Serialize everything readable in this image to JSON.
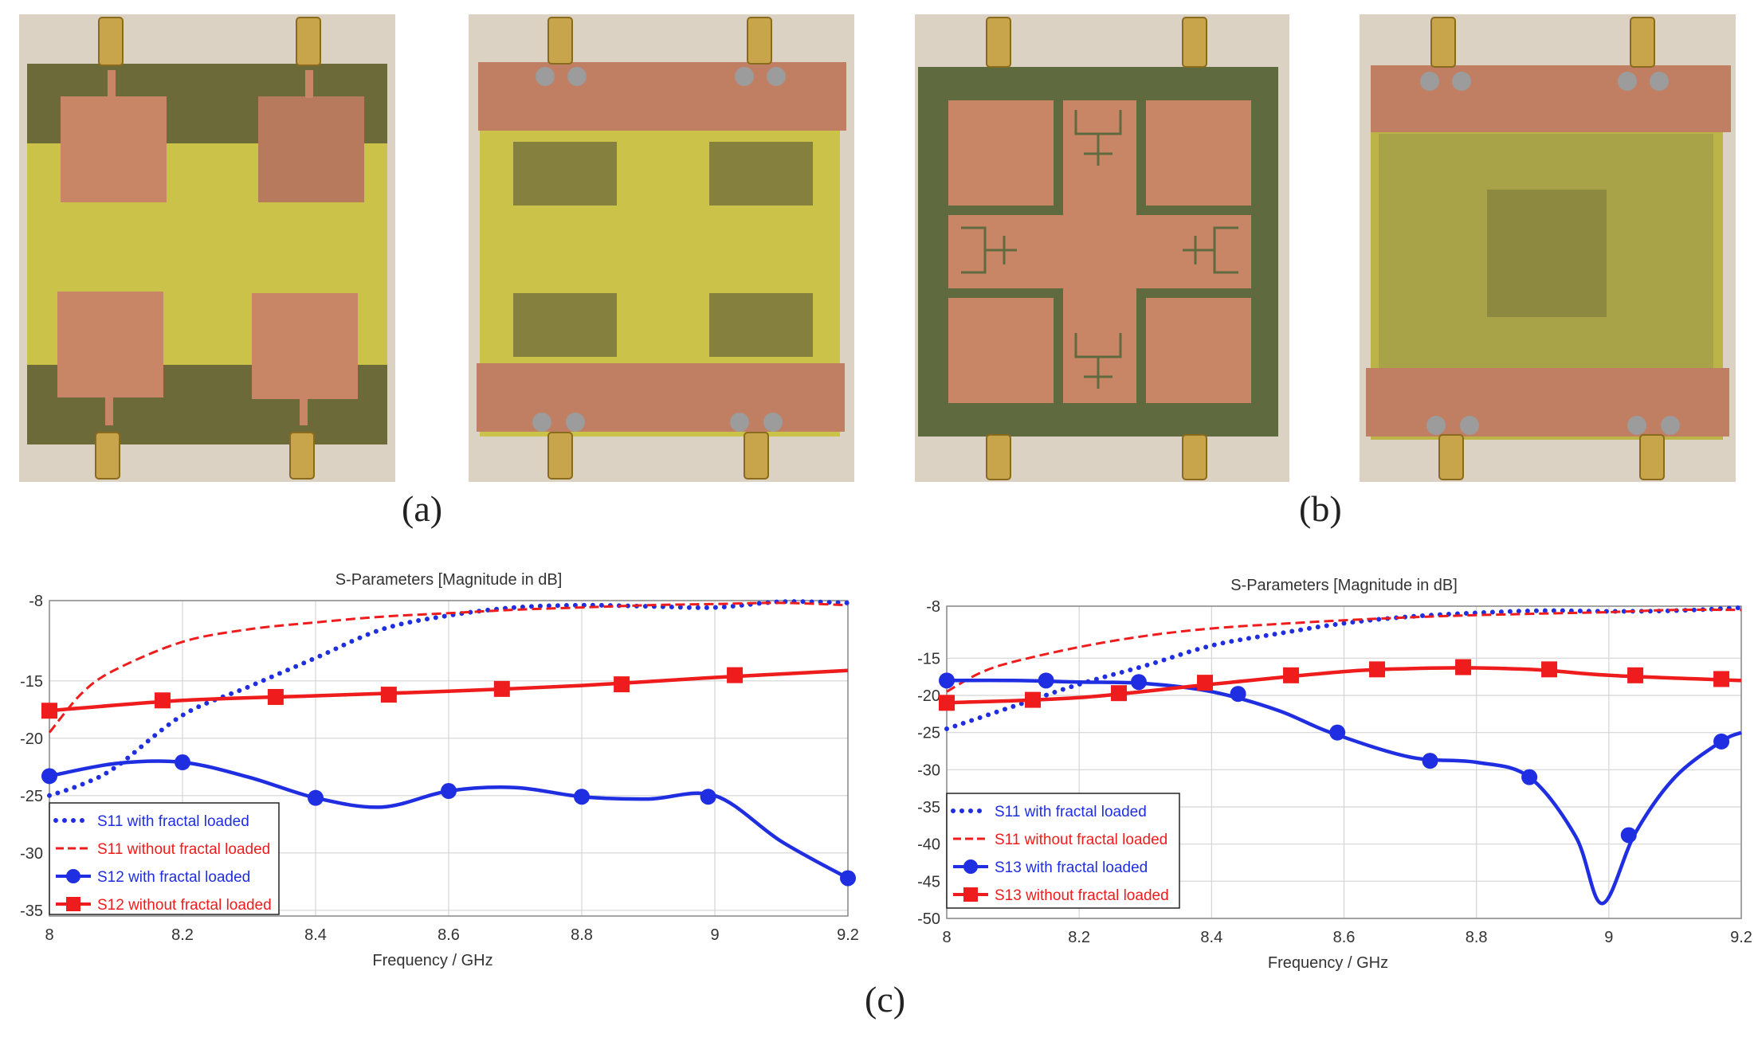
{
  "panel_labels": {
    "a": "(a)",
    "b": "(b)",
    "c": "(c)"
  },
  "photos": [
    {
      "name": "antenna-without-fractal-front"
    },
    {
      "name": "antenna-without-fractal-back"
    },
    {
      "name": "antenna-with-fractal-front"
    },
    {
      "name": "antenna-with-fractal-back"
    }
  ],
  "colors": {
    "blue": "#1f2ee0",
    "red": "#ee1c1c",
    "grid": "#d4d4d4",
    "fr4": "#c9c246",
    "copper": "#c98667",
    "ground": "#6e6b3a"
  },
  "chart_data": [
    {
      "type": "line",
      "title": "S-Parameters [Magnitude in dB]",
      "xlabel": "Frequency / GHz",
      "ylabel": "",
      "xlim": [
        8,
        9.2
      ],
      "ylim": [
        -35.5,
        -8
      ],
      "xticks": [
        8,
        8.2,
        8.4,
        8.6,
        8.8,
        9,
        9.2
      ],
      "xtick_labels": [
        "8",
        "8.2",
        "8.4",
        "8.6",
        "8.8",
        "9",
        "9.2"
      ],
      "yticks": [
        -8,
        -15,
        -20,
        -25,
        -30,
        -35
      ],
      "ytick_labels": [
        "-8",
        "-15",
        "-20",
        "-25",
        "-30",
        "-35"
      ],
      "legend_position": "bottom-left",
      "series": [
        {
          "name": "S11 with fractal loaded",
          "style": "dotted",
          "color": "#1f2ee0",
          "x": [
            8,
            8.05,
            8.1,
            8.2,
            8.3,
            8.4,
            8.5,
            8.6,
            8.7,
            8.8,
            8.9,
            9,
            9.1,
            9.2
          ],
          "y": [
            -25,
            -24,
            -22.5,
            -18,
            -15.5,
            -13,
            -10.5,
            -9.3,
            -8.6,
            -8.4,
            -8.5,
            -8.6,
            -8.1,
            -8.2
          ]
        },
        {
          "name": "S11 without fractal loaded",
          "style": "dashed",
          "color": "#ee1c1c",
          "x": [
            8,
            8.05,
            8.1,
            8.2,
            8.3,
            8.4,
            8.5,
            8.6,
            8.7,
            8.8,
            8.9,
            9,
            9.1,
            9.2
          ],
          "y": [
            -19.5,
            -16,
            -14,
            -11.6,
            -10.5,
            -9.9,
            -9.4,
            -9.1,
            -8.8,
            -8.6,
            -8.4,
            -8.3,
            -8.2,
            -8.4
          ]
        },
        {
          "name": "S12 with fractal loaded",
          "style": "circles",
          "color": "#1f2ee0",
          "x": [
            8,
            8.1,
            8.2,
            8.3,
            8.4,
            8.5,
            8.6,
            8.7,
            8.8,
            8.9,
            9,
            9.1,
            9.2
          ],
          "y": [
            -23.3,
            -22.2,
            -22.1,
            -23.4,
            -25.2,
            -26,
            -24.6,
            -24.3,
            -25.1,
            -25.3,
            -25,
            -29,
            -32.2
          ],
          "markers_x": [
            8,
            8.2,
            8.4,
            8.6,
            8.8,
            8.99,
            9.2
          ],
          "markers_y": [
            -23.3,
            -22.1,
            -25.2,
            -24.6,
            -25.1,
            -25.1,
            -32.2
          ]
        },
        {
          "name": "S12 without fractal loaded",
          "style": "squares",
          "color": "#ee1c1c",
          "x": [
            8,
            8.2,
            8.4,
            8.6,
            8.8,
            9,
            9.2
          ],
          "y": [
            -17.6,
            -16.7,
            -16.3,
            -15.9,
            -15.4,
            -14.7,
            -14.1
          ],
          "markers_x": [
            8,
            8.17,
            8.34,
            8.51,
            8.68,
            8.86,
            9.03
          ],
          "markers_y": [
            -17.6,
            -16.7,
            -16.4,
            -16.2,
            -15.7,
            -15.3,
            -14.5
          ]
        }
      ]
    },
    {
      "type": "line",
      "title": "S-Parameters [Magnitude in dB]",
      "xlabel": "Frequency / GHz",
      "ylabel": "",
      "xlim": [
        8,
        9.2
      ],
      "ylim": [
        -50,
        -8
      ],
      "xticks": [
        8,
        8.2,
        8.4,
        8.6,
        8.8,
        9,
        9.2
      ],
      "xtick_labels": [
        "8",
        "8.2",
        "8.4",
        "8.6",
        "8.8",
        "9",
        "9.2"
      ],
      "yticks": [
        -8,
        -15,
        -20,
        -25,
        -30,
        -35,
        -40,
        -45,
        -50
      ],
      "ytick_labels": [
        "-8",
        "-15",
        "-20",
        "-25",
        "-30",
        "-35",
        "-40",
        "-45",
        "-50"
      ],
      "legend_position": "bottom-left",
      "series": [
        {
          "name": "S11 with fractal loaded",
          "style": "dotted",
          "color": "#1f2ee0",
          "x": [
            8,
            8.1,
            8.2,
            8.3,
            8.4,
            8.5,
            8.6,
            8.7,
            8.8,
            8.9,
            9,
            9.1,
            9.2
          ],
          "y": [
            -24.5,
            -21.5,
            -18.5,
            -16,
            -13.3,
            -11.7,
            -10.3,
            -9.4,
            -8.9,
            -8.6,
            -8.7,
            -8.6,
            -8.2
          ]
        },
        {
          "name": "S11 without fractal loaded",
          "style": "dashed",
          "color": "#ee1c1c",
          "x": [
            8,
            8.05,
            8.1,
            8.2,
            8.3,
            8.4,
            8.5,
            8.6,
            8.7,
            8.8,
            8.9,
            9,
            9.1,
            9.2
          ],
          "y": [
            -19.5,
            -17,
            -15.5,
            -13.5,
            -12,
            -11,
            -10.4,
            -9.9,
            -9.5,
            -9.2,
            -9,
            -8.8,
            -8.5,
            -8.5
          ]
        },
        {
          "name": "S13 with fractal loaded",
          "style": "circles",
          "color": "#1f2ee0",
          "x": [
            8,
            8.1,
            8.2,
            8.3,
            8.4,
            8.5,
            8.58,
            8.7,
            8.8,
            8.88,
            8.95,
            8.99,
            9.04,
            9.1,
            9.17,
            9.2
          ],
          "y": [
            -18,
            -18,
            -18.2,
            -18.4,
            -19.5,
            -22,
            -25,
            -28.3,
            -29,
            -31,
            -39,
            -48,
            -38.5,
            -31,
            -26.2,
            -25
          ],
          "markers_x": [
            8,
            8.15,
            8.29,
            8.44,
            8.59,
            8.73,
            8.88,
            9.03,
            9.17
          ],
          "markers_y": [
            -18,
            -18,
            -18.2,
            -19.8,
            -25,
            -28.8,
            -31,
            -38.8,
            -26.2
          ]
        },
        {
          "name": "S13 without fractal loaded",
          "style": "squares",
          "color": "#ee1c1c",
          "x": [
            8,
            8.2,
            8.4,
            8.6,
            8.7,
            8.8,
            8.9,
            9,
            9.2
          ],
          "y": [
            -21,
            -20.3,
            -18.5,
            -16.8,
            -16.4,
            -16.3,
            -16.6,
            -17.3,
            -18
          ],
          "markers_x": [
            8,
            8.13,
            8.26,
            8.39,
            8.52,
            8.65,
            8.78,
            8.91,
            9.04,
            9.17
          ],
          "markers_y": [
            -21,
            -20.6,
            -19.7,
            -18.3,
            -17.3,
            -16.5,
            -16.2,
            -16.5,
            -17.3,
            -17.8
          ]
        }
      ]
    }
  ]
}
